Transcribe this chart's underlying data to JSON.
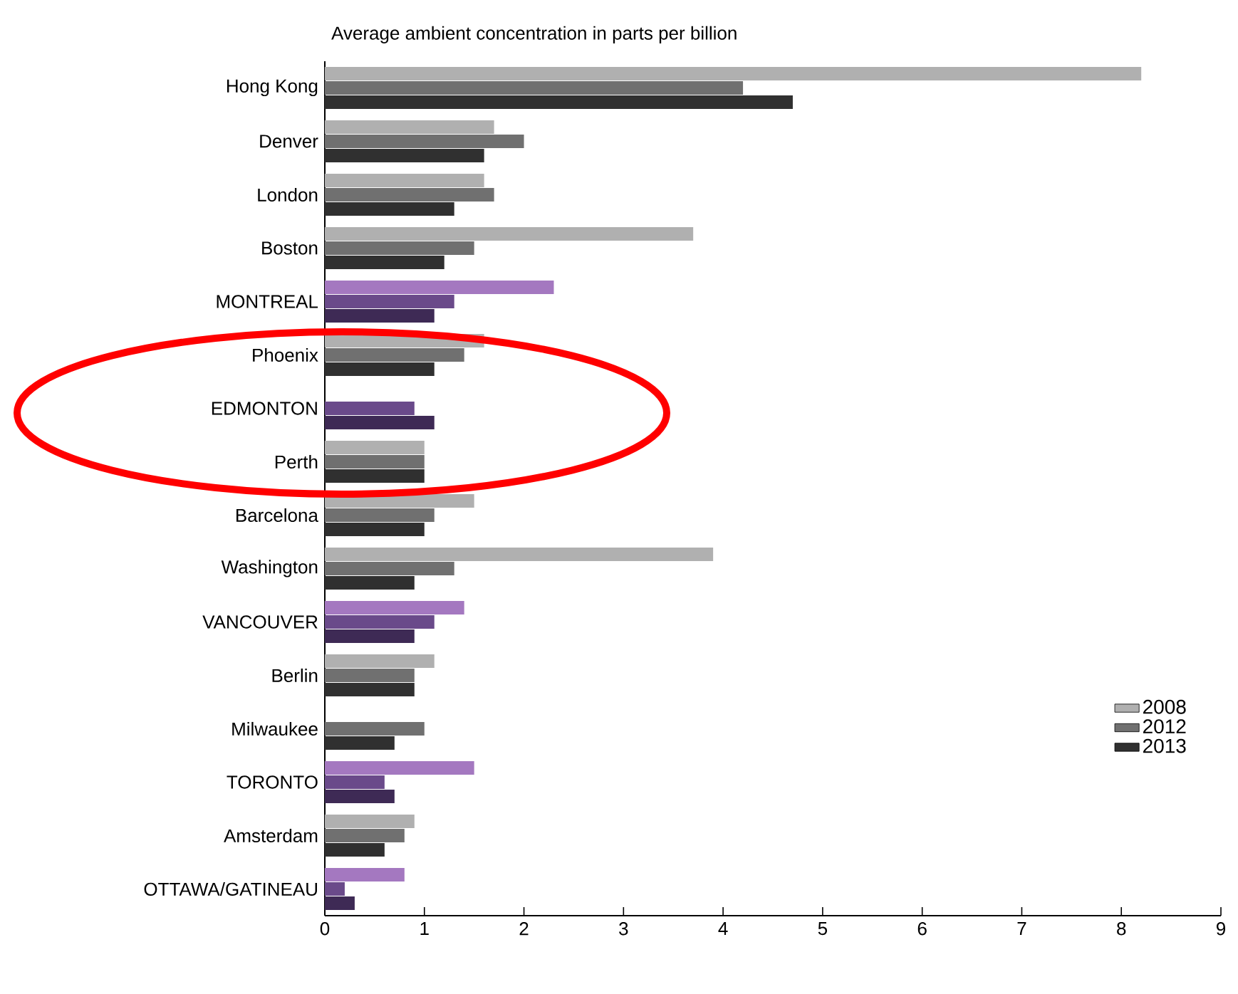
{
  "chart_data": {
    "type": "bar",
    "orientation": "horizontal",
    "xlabel": "Average ambient concentration in parts per billion",
    "categories": [
      "Hong Kong",
      "Denver",
      "London",
      "Boston",
      "MONTREAL",
      "Phoenix",
      "EDMONTON",
      "Perth",
      "Barcelona",
      "Washington",
      "VANCOUVER",
      "Berlin",
      "Milwaukee",
      "TORONTO",
      "Amsterdam",
      "OTTAWA/GATINEAU"
    ],
    "series": [
      {
        "name": "2008",
        "color": "#b0b0b0",
        "colors": [
          "#b0b0b0",
          "#b0b0b0",
          "#b0b0b0",
          "#b0b0b0",
          "#a478c0",
          "#b0b0b0",
          "#a478c0",
          "#b0b0b0",
          "#b0b0b0",
          "#b0b0b0",
          "#a478c0",
          "#b0b0b0",
          "#b0b0b0",
          "#a478c0",
          "#b0b0b0",
          "#a478c0"
        ],
        "values": [
          8.2,
          1.7,
          1.6,
          3.7,
          2.3,
          1.6,
          null,
          1.0,
          1.5,
          3.9,
          1.4,
          1.1,
          null,
          1.5,
          0.9,
          0.8
        ]
      },
      {
        "name": "2012",
        "color": "#707070",
        "colors": [
          "#707070",
          "#707070",
          "#707070",
          "#707070",
          "#6a4a8a",
          "#707070",
          "#6a4a8a",
          "#707070",
          "#707070",
          "#707070",
          "#6a4a8a",
          "#707070",
          "#707070",
          "#6a4a8a",
          "#707070",
          "#6a4a8a"
        ],
        "values": [
          4.2,
          2.0,
          1.7,
          1.5,
          1.3,
          1.4,
          0.9,
          1.0,
          1.1,
          1.3,
          1.1,
          0.9,
          1.0,
          0.6,
          0.8,
          0.2
        ]
      },
      {
        "name": "2013",
        "color": "#303030",
        "colors": [
          "#303030",
          "#303030",
          "#303030",
          "#303030",
          "#3e2a55",
          "#303030",
          "#3e2a55",
          "#303030",
          "#303030",
          "#303030",
          "#3e2a55",
          "#303030",
          "#303030",
          "#3e2a55",
          "#303030",
          "#3e2a55"
        ],
        "values": [
          4.7,
          1.6,
          1.3,
          1.2,
          1.1,
          1.1,
          1.1,
          1.0,
          1.0,
          0.9,
          0.9,
          0.9,
          0.7,
          0.7,
          0.6,
          0.3
        ]
      }
    ],
    "xlim": [
      0,
      9
    ],
    "xticks": [
      0,
      1,
      2,
      3,
      4,
      5,
      6,
      7,
      8,
      9
    ],
    "legend": "right"
  }
}
